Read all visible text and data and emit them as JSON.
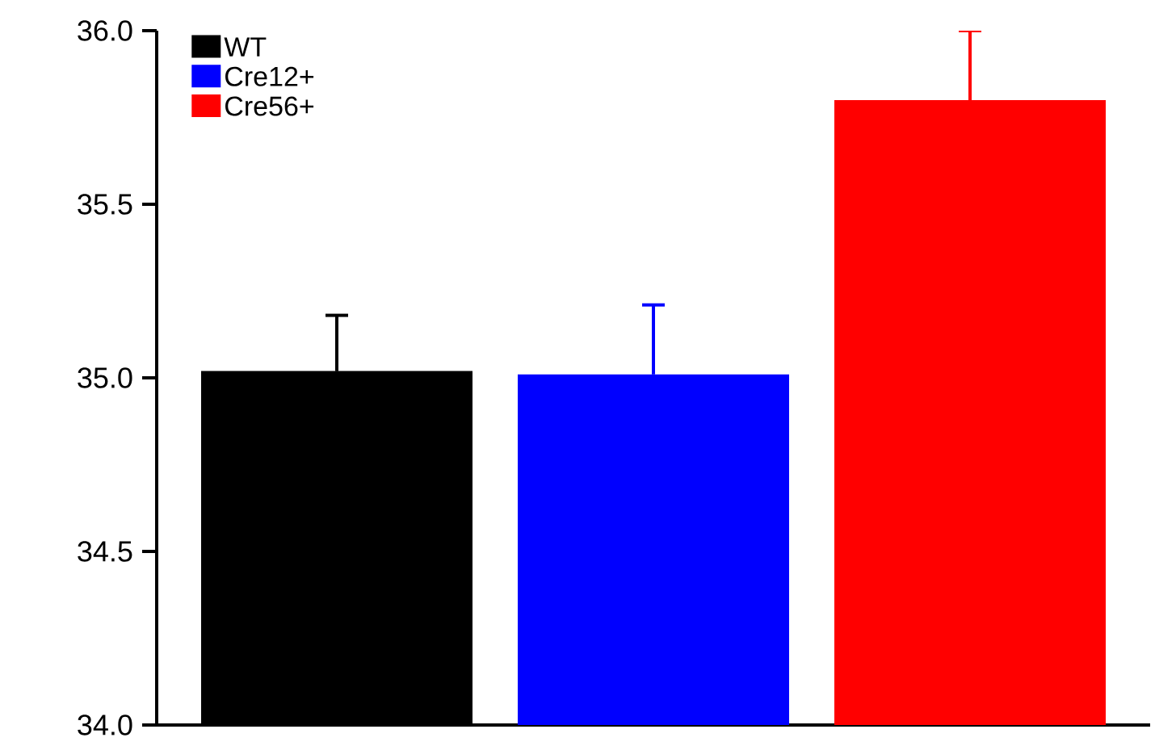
{
  "chart_data": {
    "type": "bar",
    "categories": [
      null
    ],
    "series": [
      {
        "name": "WT",
        "color": "#000000",
        "values": [
          35.02
        ],
        "errors": [
          0.16
        ]
      },
      {
        "name": "Cre12+",
        "color": "#0000ff",
        "values": [
          35.01
        ],
        "errors": [
          0.2
        ]
      },
      {
        "name": "Cre56+",
        "color": "#ff0000",
        "values": [
          35.8
        ],
        "errors": [
          0.2
        ]
      }
    ],
    "ylim": [
      34,
      36
    ],
    "yticks": [
      {
        "value": 34,
        "label": "34.0"
      },
      {
        "value": 34.5,
        "label": "34.5"
      },
      {
        "value": 35,
        "label": "35.0"
      },
      {
        "value": 35.5,
        "label": "35.5"
      },
      {
        "value": 36,
        "label": "36.0"
      }
    ],
    "legend": "top left",
    "tick_labels": "y"
  }
}
